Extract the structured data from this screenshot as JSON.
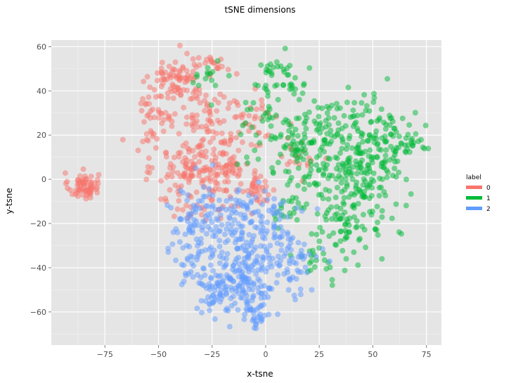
{
  "chart_data": {
    "type": "scatter",
    "title": "tSNE dimensions",
    "xlabel": "x-tsne",
    "ylabel": "y-tsne",
    "xlim": [
      -100,
      82
    ],
    "ylim": [
      -75,
      63
    ],
    "x_ticks": [
      -75,
      -50,
      -25,
      0,
      25,
      50,
      75
    ],
    "x_tick_labels": [
      "−75",
      "−50",
      "−25",
      "0",
      "25",
      "50",
      "75"
    ],
    "y_ticks": [
      -60,
      -40,
      -20,
      0,
      20,
      40,
      60
    ],
    "y_tick_labels": [
      "−60",
      "−40",
      "−20",
      "0",
      "20",
      "40",
      "60"
    ],
    "grid": true,
    "legend": {
      "title": "label",
      "position": "right",
      "entries": [
        {
          "label": "0",
          "color": "#F8766D"
        },
        {
          "label": "1",
          "color": "#00BA38"
        },
        {
          "label": "2",
          "color": "#619CFF"
        }
      ]
    },
    "series": [
      {
        "name": "0",
        "color": "#F8766D",
        "clusters": [
          {
            "cx": -85,
            "cy": -3,
            "sx": 3.5,
            "sy": 3,
            "n": 70
          },
          {
            "cx": -40,
            "cy": 45,
            "sx": 7,
            "sy": 6,
            "n": 90
          },
          {
            "cx": -25,
            "cy": 25,
            "sx": 8,
            "sy": 8,
            "n": 70
          },
          {
            "cx": -35,
            "cy": 5,
            "sx": 8,
            "sy": 6,
            "n": 90
          },
          {
            "cx": -20,
            "cy": 5,
            "sx": 6,
            "sy": 6,
            "n": 60
          },
          {
            "cx": -50,
            "cy": 32,
            "sx": 5,
            "sy": 5,
            "n": 30
          },
          {
            "cx": -5,
            "cy": -5,
            "sx": 5,
            "sy": 4,
            "n": 40
          },
          {
            "cx": -5,
            "cy": 30,
            "sx": 6,
            "sy": 8,
            "n": 30
          },
          {
            "cx": -30,
            "cy": -12,
            "sx": 8,
            "sy": 4,
            "n": 30
          },
          {
            "cx": 15,
            "cy": 10,
            "sx": 5,
            "sy": 5,
            "n": 20
          },
          {
            "cx": -55,
            "cy": 18,
            "sx": 4,
            "sy": 3,
            "n": 12
          },
          {
            "cx": -25,
            "cy": 52,
            "sx": 4,
            "sy": 2,
            "n": 15
          }
        ]
      },
      {
        "name": "1",
        "color": "#00BA38",
        "clusters": [
          {
            "cx": 40,
            "cy": 10,
            "sx": 12,
            "sy": 14,
            "n": 250
          },
          {
            "cx": 15,
            "cy": 15,
            "sx": 8,
            "sy": 10,
            "n": 80
          },
          {
            "cx": 55,
            "cy": 15,
            "sx": 8,
            "sy": 8,
            "n": 60
          },
          {
            "cx": 40,
            "cy": -20,
            "sx": 8,
            "sy": 7,
            "n": 60
          },
          {
            "cx": 5,
            "cy": 45,
            "sx": 6,
            "sy": 6,
            "n": 40
          },
          {
            "cx": 0,
            "cy": 25,
            "sx": 6,
            "sy": 8,
            "n": 30
          },
          {
            "cx": 25,
            "cy": -35,
            "sx": 6,
            "sy": 5,
            "n": 25
          },
          {
            "cx": -25,
            "cy": 45,
            "sx": 4,
            "sy": 5,
            "n": 15
          },
          {
            "cx": 10,
            "cy": -15,
            "sx": 5,
            "sy": 5,
            "n": 20
          },
          {
            "cx": 65,
            "cy": 18,
            "sx": 4,
            "sy": 4,
            "n": 20
          }
        ]
      },
      {
        "name": "2",
        "color": "#619CFF",
        "clusters": [
          {
            "cx": -10,
            "cy": -45,
            "sx": 8,
            "sy": 9,
            "n": 150
          },
          {
            "cx": -30,
            "cy": -20,
            "sx": 8,
            "sy": 8,
            "n": 90
          },
          {
            "cx": -25,
            "cy": -50,
            "sx": 5,
            "sy": 4,
            "n": 40
          },
          {
            "cx": 5,
            "cy": -25,
            "sx": 8,
            "sy": 8,
            "n": 70
          },
          {
            "cx": -10,
            "cy": -15,
            "sx": 8,
            "sy": 5,
            "n": 50
          },
          {
            "cx": 15,
            "cy": -40,
            "sx": 6,
            "sy": 7,
            "n": 40
          },
          {
            "cx": -15,
            "cy": -30,
            "sx": 6,
            "sy": 6,
            "n": 40
          },
          {
            "cx": -5,
            "cy": -62,
            "sx": 4,
            "sy": 3,
            "n": 25
          },
          {
            "cx": -35,
            "cy": -38,
            "sx": 4,
            "sy": 6,
            "n": 25
          }
        ]
      }
    ]
  }
}
